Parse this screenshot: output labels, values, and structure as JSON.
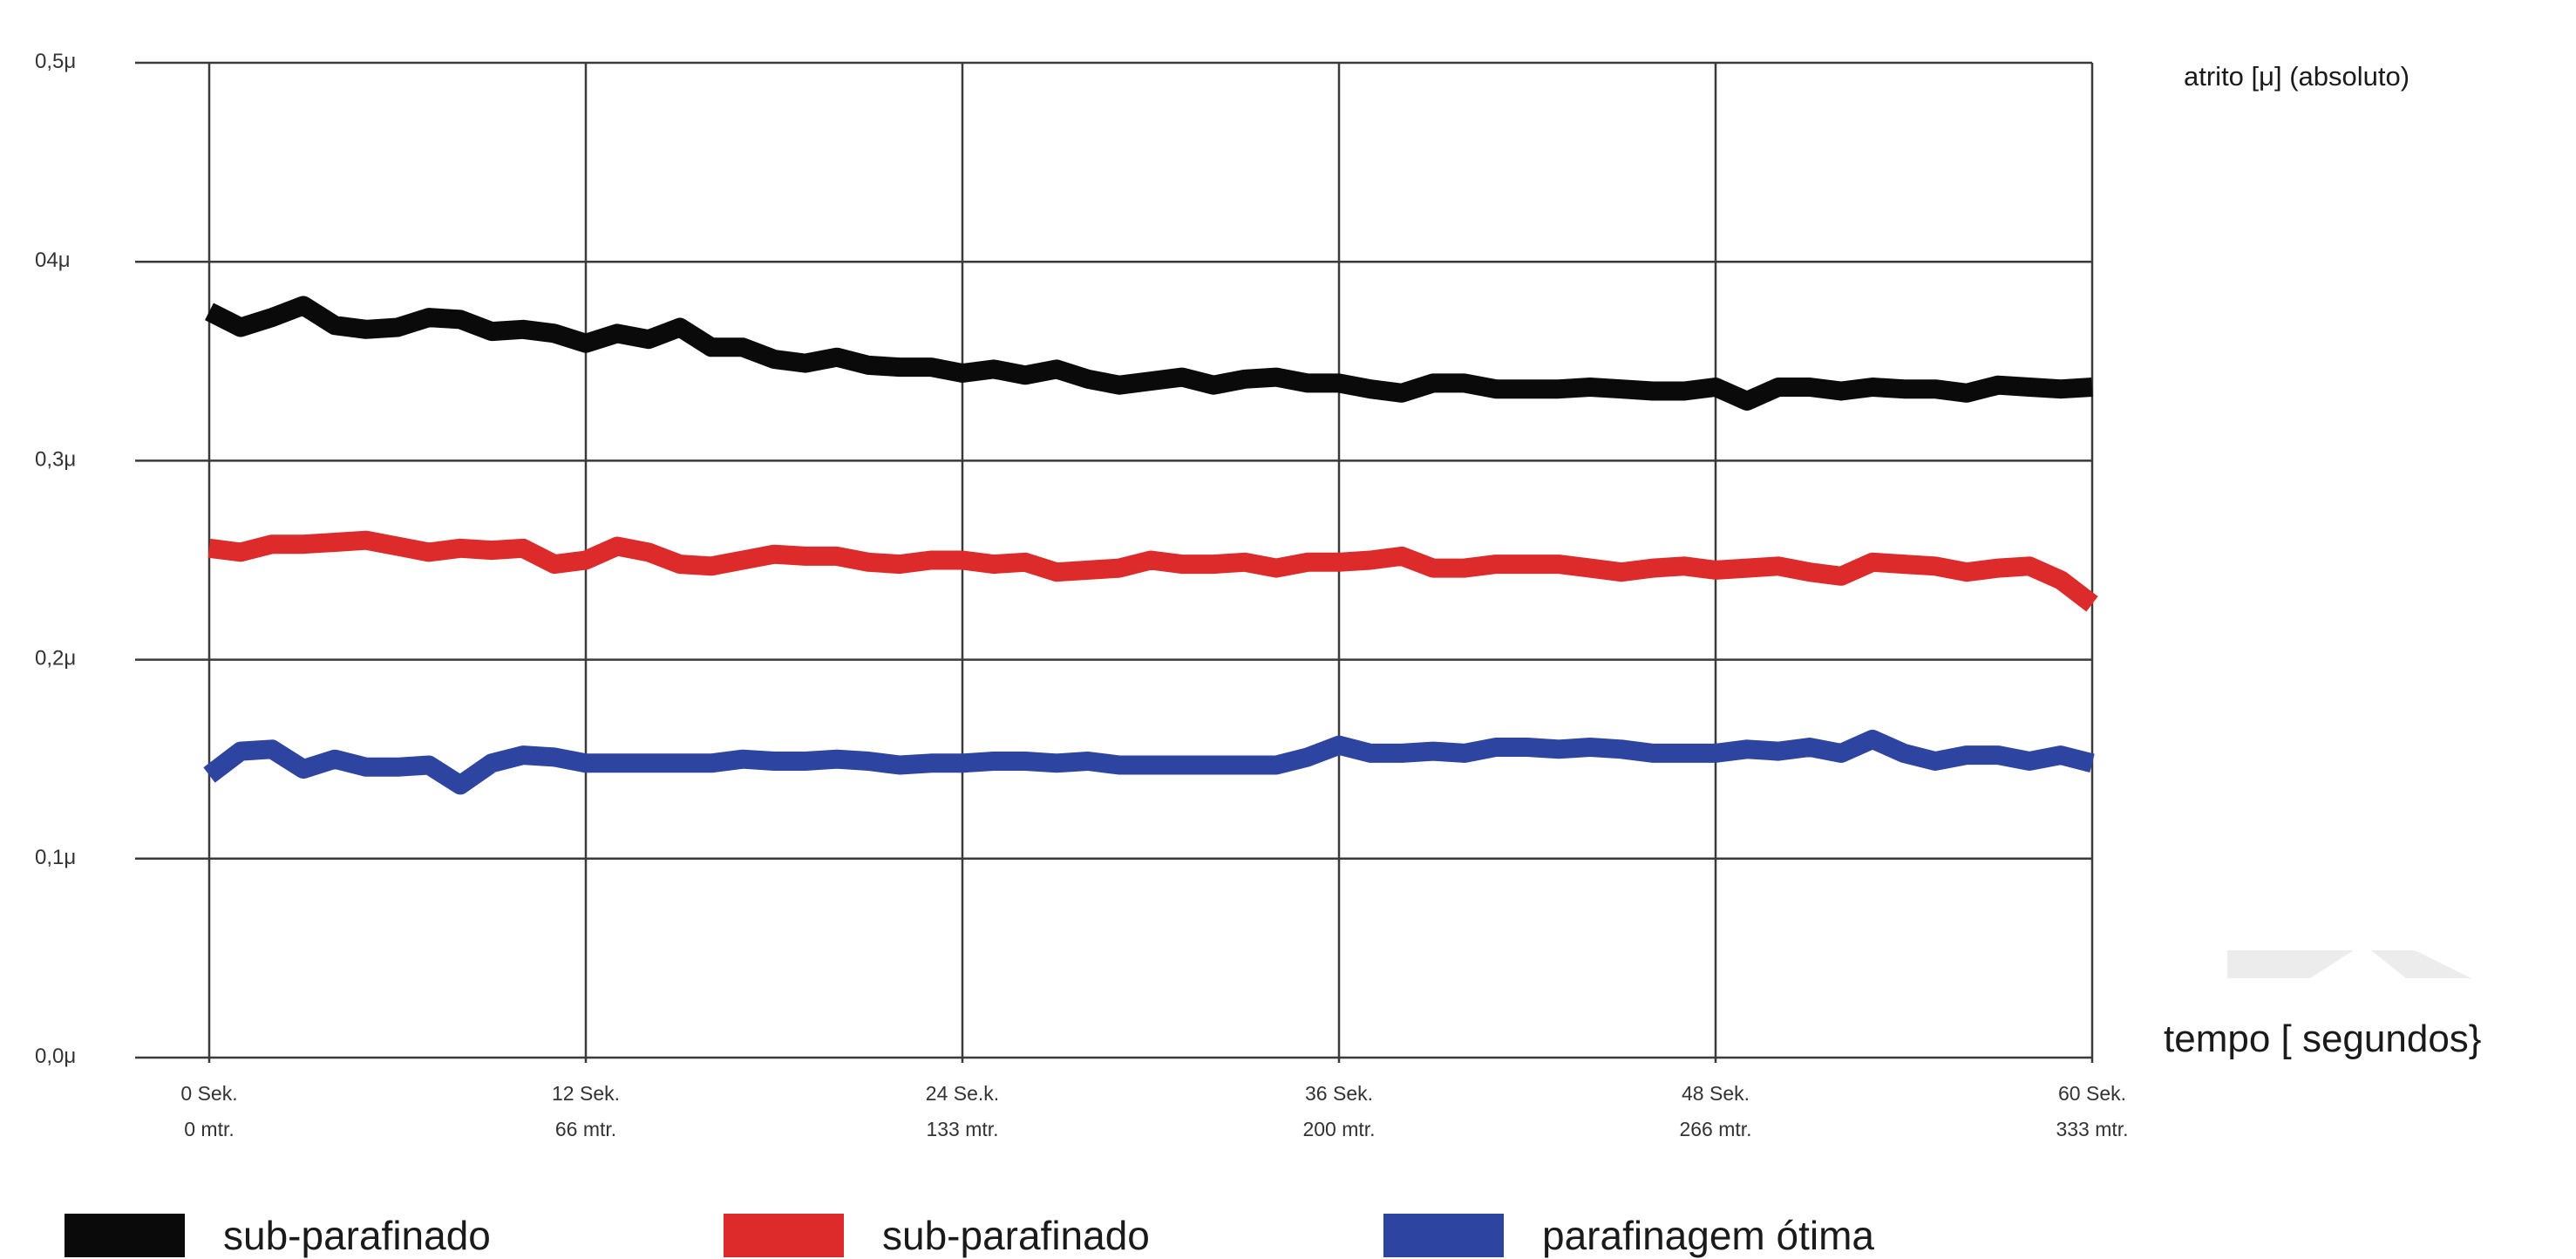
{
  "chart_data": {
    "type": "line",
    "title": "",
    "ylabel": "atrito [μ] (absoluto)",
    "xlabel": "tempo [ segundos}",
    "ylim": [
      0,
      0.5
    ],
    "xlim": [
      0,
      60
    ],
    "grid": true,
    "legend_position": "bottom",
    "y_ticks": [
      {
        "value": 0.0,
        "label": "0,0μ"
      },
      {
        "value": 0.1,
        "label": "0,1μ"
      },
      {
        "value": 0.2,
        "label": "0,2μ"
      },
      {
        "value": 0.3,
        "label": "0,3μ"
      },
      {
        "value": 0.4,
        "label": "04μ"
      },
      {
        "value": 0.5,
        "label": "0,5μ"
      }
    ],
    "x_ticks": [
      {
        "value": 0,
        "label": "0 Sek.",
        "sublabel": "0 mtr."
      },
      {
        "value": 12,
        "label": "12 Sek.",
        "sublabel": "66 mtr."
      },
      {
        "value": 24,
        "label": "24 Se.k.",
        "sublabel": "133 mtr."
      },
      {
        "value": 36,
        "label": "36 Sek.",
        "sublabel": "200 mtr."
      },
      {
        "value": 48,
        "label": "48 Sek.",
        "sublabel": "266 mtr."
      },
      {
        "value": 60,
        "label": "60 Sek.",
        "sublabel": "333 mtr."
      }
    ],
    "series": [
      {
        "name": "sub-parafinado",
        "color": "#0a0a0a",
        "x": [
          0,
          1,
          2,
          3,
          4,
          5,
          6,
          7,
          8,
          9,
          10,
          11,
          12,
          13,
          14,
          15,
          16,
          17,
          18,
          19,
          20,
          21,
          22,
          23,
          24,
          25,
          26,
          27,
          28,
          29,
          30,
          31,
          32,
          33,
          34,
          35,
          36,
          37,
          38,
          39,
          40,
          41,
          42,
          43,
          44,
          45,
          46,
          47,
          48,
          49,
          50,
          51,
          52,
          53,
          54,
          55,
          56,
          57,
          58,
          59,
          60
        ],
        "values": [
          0.375,
          0.367,
          0.372,
          0.378,
          0.368,
          0.366,
          0.367,
          0.372,
          0.371,
          0.365,
          0.366,
          0.364,
          0.359,
          0.364,
          0.361,
          0.367,
          0.357,
          0.357,
          0.351,
          0.349,
          0.352,
          0.348,
          0.347,
          0.347,
          0.344,
          0.346,
          0.343,
          0.346,
          0.341,
          0.338,
          0.34,
          0.342,
          0.338,
          0.341,
          0.342,
          0.339,
          0.339,
          0.336,
          0.334,
          0.339,
          0.339,
          0.336,
          0.336,
          0.336,
          0.337,
          0.336,
          0.335,
          0.335,
          0.337,
          0.33,
          0.337,
          0.337,
          0.335,
          0.337,
          0.336,
          0.336,
          0.334,
          0.338,
          0.337,
          0.336,
          0.337
        ]
      },
      {
        "name": "sub-parafinado",
        "color": "#dd2a2a",
        "x": [
          0,
          1,
          2,
          3,
          4,
          5,
          6,
          7,
          8,
          9,
          10,
          11,
          12,
          13,
          14,
          15,
          16,
          17,
          18,
          19,
          20,
          21,
          22,
          23,
          24,
          25,
          26,
          27,
          28,
          29,
          30,
          31,
          32,
          33,
          34,
          35,
          36,
          37,
          38,
          39,
          40,
          41,
          42,
          43,
          44,
          45,
          46,
          47,
          48,
          49,
          50,
          51,
          52,
          53,
          54,
          55,
          56,
          57,
          58,
          59,
          60
        ],
        "values": [
          0.256,
          0.254,
          0.258,
          0.258,
          0.259,
          0.26,
          0.257,
          0.254,
          0.256,
          0.255,
          0.256,
          0.248,
          0.25,
          0.257,
          0.254,
          0.248,
          0.247,
          0.25,
          0.253,
          0.252,
          0.252,
          0.249,
          0.248,
          0.25,
          0.25,
          0.248,
          0.249,
          0.244,
          0.245,
          0.246,
          0.25,
          0.248,
          0.248,
          0.249,
          0.246,
          0.249,
          0.249,
          0.25,
          0.252,
          0.246,
          0.246,
          0.248,
          0.248,
          0.248,
          0.246,
          0.244,
          0.246,
          0.247,
          0.245,
          0.246,
          0.247,
          0.244,
          0.242,
          0.249,
          0.248,
          0.247,
          0.244,
          0.246,
          0.247,
          0.24,
          0.228
        ]
      },
      {
        "name": "parafinagem ótima",
        "color": "#2d44a0",
        "x": [
          0,
          1,
          2,
          3,
          4,
          5,
          6,
          7,
          8,
          9,
          10,
          11,
          12,
          13,
          14,
          15,
          16,
          17,
          18,
          19,
          20,
          21,
          22,
          23,
          24,
          25,
          26,
          27,
          28,
          29,
          30,
          31,
          32,
          33,
          34,
          35,
          36,
          37,
          38,
          39,
          40,
          41,
          42,
          43,
          44,
          45,
          46,
          47,
          48,
          49,
          50,
          51,
          52,
          53,
          54,
          55,
          56,
          57,
          58,
          59,
          60
        ],
        "values": [
          0.142,
          0.154,
          0.155,
          0.145,
          0.15,
          0.146,
          0.146,
          0.147,
          0.137,
          0.148,
          0.152,
          0.151,
          0.148,
          0.148,
          0.148,
          0.148,
          0.148,
          0.15,
          0.149,
          0.149,
          0.15,
          0.149,
          0.147,
          0.148,
          0.148,
          0.149,
          0.149,
          0.148,
          0.149,
          0.147,
          0.147,
          0.147,
          0.147,
          0.147,
          0.147,
          0.151,
          0.157,
          0.153,
          0.153,
          0.154,
          0.153,
          0.156,
          0.156,
          0.155,
          0.156,
          0.155,
          0.153,
          0.153,
          0.153,
          0.155,
          0.154,
          0.156,
          0.153,
          0.16,
          0.153,
          0.149,
          0.152,
          0.152,
          0.149,
          0.152,
          0.148
        ]
      }
    ]
  }
}
